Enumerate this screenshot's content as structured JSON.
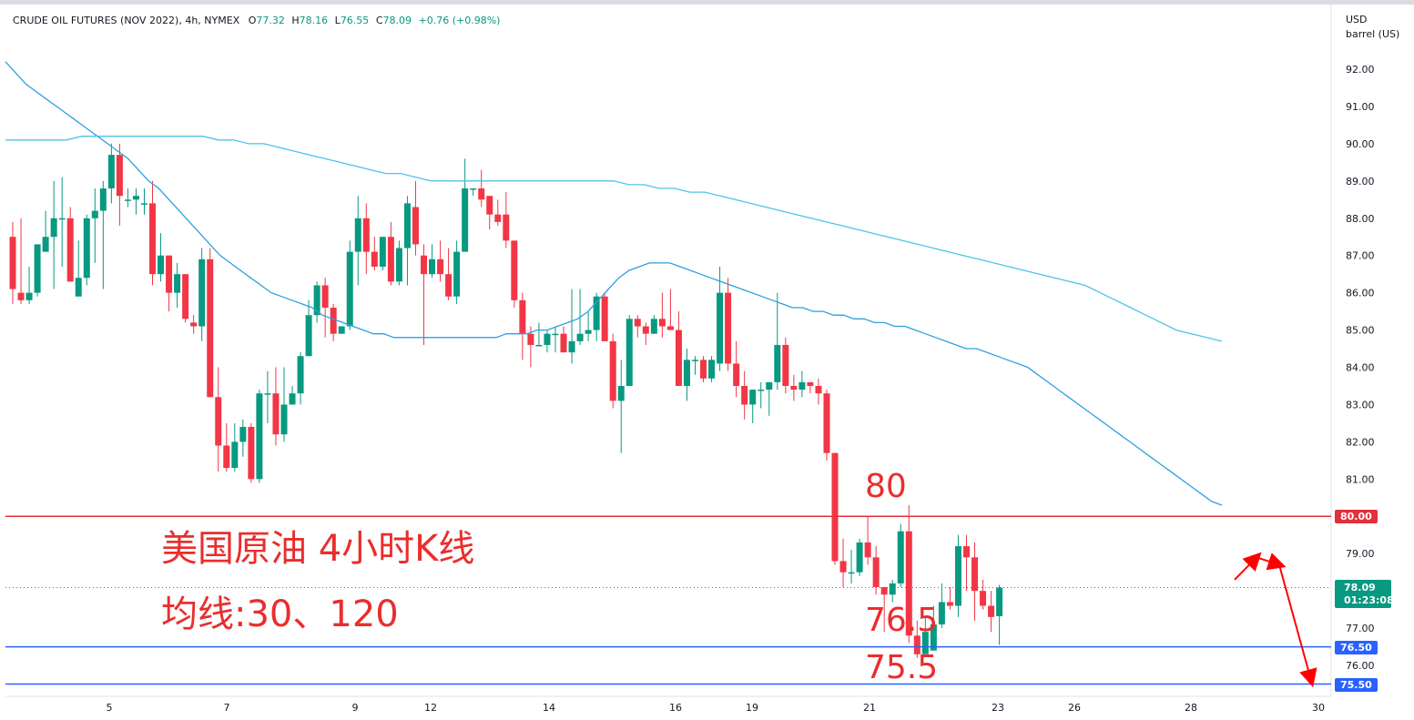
{
  "header": {
    "title": "CRUDE OIL FUTURES (NOV 2022), 4h, NYMEX",
    "open_label": "O",
    "open": "77.32",
    "high_label": "H",
    "high": "78.16",
    "low_label": "L",
    "low": "76.55",
    "close_label": "C",
    "close": "78.09",
    "change": "+0.76 (+0.98%)"
  },
  "axis": {
    "currency": "USD",
    "unit": "barrel (US)"
  },
  "price_tags": {
    "r80": "80.00",
    "r765": "76.50",
    "r755": "75.50",
    "last": "78.09",
    "countdown": "01:23:08"
  },
  "annotations": {
    "title": "美国原油 4小时K线",
    "ma": "均线:30、120",
    "level80": "80",
    "level765": "76.5",
    "level755": "75.5"
  },
  "colors": {
    "up": "#089981",
    "down": "#f23645",
    "ma_fast": "#2f9fe0",
    "ma_slow": "#4fc3e8",
    "resistance": "#e2303c",
    "support": "#2962ff",
    "annotation": "#ea2d2d",
    "grid": "#f0f3fa"
  },
  "chart_data": {
    "type": "candlestick",
    "title": "CRUDE OIL FUTURES (NOV 2022), 4h, NYMEX",
    "ylabel": "USD barrel (US)",
    "ylim": [
      75.0,
      92.7
    ],
    "ticks_y": [
      "76.00",
      "77.00",
      "78.00",
      "79.00",
      "80.00",
      "81.00",
      "82.00",
      "83.00",
      "84.00",
      "85.00",
      "86.00",
      "87.00",
      "88.00",
      "89.00",
      "90.00",
      "91.00",
      "92.00"
    ],
    "ticks_x": [
      "5",
      "7",
      "9",
      "12",
      "14",
      "16",
      "19",
      "21",
      "23",
      "26",
      "28",
      "30"
    ],
    "candles": [
      [
        87.5,
        86.1,
        87.9,
        85.7
      ],
      [
        86.0,
        85.8,
        88.0,
        85.7
      ],
      [
        85.8,
        86.0,
        86.7,
        85.7
      ],
      [
        86.0,
        87.3,
        87.3,
        85.9
      ],
      [
        87.1,
        87.5,
        88.2,
        87.1
      ],
      [
        87.5,
        88.0,
        89.0,
        86.1
      ],
      [
        88.0,
        88.0,
        89.1,
        86.7
      ],
      [
        88.0,
        86.3,
        88.3,
        86.3
      ],
      [
        85.9,
        86.4,
        87.4,
        85.9
      ],
      [
        86.4,
        88.0,
        88.1,
        86.2
      ],
      [
        88.0,
        88.2,
        88.8,
        86.8
      ],
      [
        88.2,
        88.8,
        89.0,
        86.1
      ],
      [
        88.8,
        89.7,
        90.0,
        88.4
      ],
      [
        89.7,
        88.6,
        90.0,
        87.8
      ],
      [
        88.5,
        88.5,
        88.8,
        88.3
      ],
      [
        88.5,
        88.6,
        88.8,
        88.1
      ],
      [
        88.4,
        88.4,
        88.8,
        88.1
      ],
      [
        88.4,
        86.5,
        89.0,
        86.2
      ],
      [
        86.5,
        87.0,
        87.6,
        86.3
      ],
      [
        87.0,
        86.0,
        87.0,
        85.5
      ],
      [
        86.0,
        86.5,
        86.8,
        85.6
      ],
      [
        86.5,
        85.3,
        86.5,
        85.2
      ],
      [
        85.2,
        85.1,
        85.4,
        84.9
      ],
      [
        85.1,
        86.9,
        87.2,
        84.7
      ],
      [
        86.9,
        83.2,
        87.2,
        83.2
      ],
      [
        83.2,
        81.9,
        84.0,
        81.2
      ],
      [
        81.9,
        81.3,
        82.5,
        81.2
      ],
      [
        81.3,
        82.0,
        82.5,
        81.2
      ],
      [
        82.0,
        82.4,
        82.6,
        81.6
      ],
      [
        82.4,
        81.0,
        82.5,
        80.9
      ],
      [
        81.0,
        83.3,
        83.4,
        80.9
      ],
      [
        83.3,
        83.3,
        83.9,
        82.5
      ],
      [
        83.3,
        82.2,
        84.0,
        81.9
      ],
      [
        82.2,
        83.0,
        84.0,
        82.0
      ],
      [
        83.0,
        83.3,
        83.5,
        83.0
      ],
      [
        83.3,
        84.3,
        84.4,
        83.0
      ],
      [
        84.3,
        85.4,
        85.8,
        84.3
      ],
      [
        85.4,
        86.2,
        86.3,
        85.2
      ],
      [
        86.2,
        85.6,
        86.4,
        84.8
      ],
      [
        85.6,
        84.9,
        85.7,
        84.7
      ],
      [
        84.9,
        85.1,
        85.1,
        84.9
      ],
      [
        85.1,
        87.1,
        87.4,
        85.0
      ],
      [
        87.1,
        88.0,
        88.6,
        86.2
      ],
      [
        88.0,
        87.1,
        88.4,
        86.5
      ],
      [
        87.1,
        86.7,
        87.5,
        86.6
      ],
      [
        86.7,
        87.5,
        87.5,
        86.6
      ],
      [
        87.5,
        86.3,
        87.9,
        86.2
      ],
      [
        86.3,
        87.2,
        87.4,
        86.2
      ],
      [
        87.2,
        88.4,
        88.6,
        86.2
      ],
      [
        88.3,
        87.3,
        89.0,
        87.0
      ],
      [
        87.0,
        86.5,
        87.3,
        84.6
      ],
      [
        86.5,
        86.9,
        87.3,
        86.4
      ],
      [
        86.9,
        86.5,
        87.4,
        86.3
      ],
      [
        86.5,
        85.9,
        87.2,
        85.8
      ],
      [
        85.9,
        87.1,
        87.4,
        85.7
      ],
      [
        87.1,
        88.8,
        89.6,
        88.7
      ],
      [
        88.8,
        88.8,
        88.8,
        88.6
      ],
      [
        88.8,
        88.5,
        89.3,
        88.3
      ],
      [
        88.6,
        88.1,
        88.5,
        87.7
      ],
      [
        88.1,
        87.9,
        88.5,
        87.8
      ],
      [
        88.1,
        87.4,
        88.7,
        87.2
      ],
      [
        87.4,
        85.8,
        87.4,
        85.6
      ],
      [
        85.8,
        84.9,
        86.0,
        84.2
      ],
      [
        84.9,
        84.6,
        85.1,
        84.0
      ],
      [
        84.6,
        84.6,
        85.2,
        84.6
      ],
      [
        84.6,
        84.9,
        85.0,
        84.4
      ],
      [
        84.9,
        84.9,
        85.1,
        84.4
      ],
      [
        84.9,
        84.4,
        85.1,
        84.4
      ],
      [
        84.4,
        84.7,
        86.1,
        84.1
      ],
      [
        84.7,
        84.9,
        86.1,
        84.6
      ],
      [
        84.9,
        85.0,
        85.5,
        84.7
      ],
      [
        85.0,
        85.9,
        86.0,
        84.7
      ],
      [
        85.9,
        84.7,
        86.0,
        84.7
      ],
      [
        84.7,
        83.1,
        84.9,
        82.9
      ],
      [
        83.1,
        83.5,
        84.2,
        81.7
      ],
      [
        83.5,
        85.3,
        85.4,
        83.5
      ],
      [
        85.3,
        85.1,
        85.4,
        84.8
      ],
      [
        85.1,
        84.9,
        85.2,
        84.6
      ],
      [
        84.9,
        85.3,
        85.4,
        84.9
      ],
      [
        85.3,
        85.1,
        86.0,
        84.8
      ],
      [
        85.1,
        85.0,
        86.1,
        85.0
      ],
      [
        85.0,
        83.5,
        85.5,
        83.5
      ],
      [
        83.5,
        84.2,
        84.5,
        83.1
      ],
      [
        84.2,
        84.2,
        84.3,
        83.8
      ],
      [
        84.2,
        83.7,
        84.3,
        83.6
      ],
      [
        83.7,
        84.2,
        84.3,
        83.6
      ],
      [
        84.1,
        86.0,
        86.7,
        83.9
      ],
      [
        86.0,
        84.1,
        86.4,
        83.9
      ],
      [
        84.1,
        83.5,
        84.7,
        83.2
      ],
      [
        83.5,
        83.0,
        83.9,
        82.6
      ],
      [
        83.0,
        83.4,
        83.4,
        82.5
      ],
      [
        83.4,
        83.4,
        83.6,
        82.9
      ],
      [
        83.4,
        83.6,
        83.6,
        82.7
      ],
      [
        83.6,
        84.6,
        86.0,
        83.4
      ],
      [
        84.6,
        83.5,
        84.8,
        83.3
      ],
      [
        83.5,
        83.4,
        83.8,
        83.1
      ],
      [
        83.4,
        83.6,
        83.9,
        83.2
      ],
      [
        83.6,
        83.5,
        83.6,
        83.3
      ],
      [
        83.5,
        83.3,
        83.7,
        83.0
      ],
      [
        83.3,
        81.7,
        83.4,
        81.5
      ],
      [
        81.7,
        78.8,
        81.7,
        78.7
      ],
      [
        78.8,
        78.5,
        79.4,
        78.1
      ],
      [
        78.5,
        78.5,
        79.1,
        78.2
      ],
      [
        78.5,
        79.3,
        79.4,
        78.4
      ],
      [
        79.3,
        78.9,
        80.0,
        78.7
      ],
      [
        78.9,
        78.1,
        79.2,
        77.9
      ],
      [
        78.1,
        77.9,
        78.1,
        76.9
      ],
      [
        77.9,
        78.2,
        78.3,
        77.7
      ],
      [
        78.2,
        79.6,
        79.8,
        78.1
      ],
      [
        79.6,
        76.8,
        80.3,
        76.6
      ],
      [
        76.8,
        76.3,
        77.2,
        76.2
      ],
      [
        76.3,
        76.9,
        77.3,
        76.4
      ],
      [
        76.4,
        77.1,
        77.6,
        76.4
      ],
      [
        77.1,
        77.7,
        78.2,
        77.0
      ],
      [
        77.7,
        77.6,
        78.1,
        77.5
      ],
      [
        77.6,
        79.2,
        79.5,
        77.3
      ],
      [
        79.2,
        78.9,
        79.5,
        78.0
      ],
      [
        78.9,
        78.0,
        79.3,
        77.2
      ],
      [
        78.0,
        77.6,
        78.3,
        77.5
      ],
      [
        77.6,
        77.3,
        78.0,
        76.9
      ],
      [
        77.32,
        78.09,
        78.16,
        76.55
      ]
    ],
    "ma30": [
      92.2,
      91.9,
      91.6,
      91.4,
      91.2,
      91.0,
      90.8,
      90.6,
      90.4,
      90.2,
      90.0,
      89.8,
      89.6,
      89.3,
      89.0,
      88.8,
      88.5,
      88.2,
      87.9,
      87.6,
      87.3,
      87.0,
      86.8,
      86.6,
      86.4,
      86.2,
      86.0,
      85.9,
      85.8,
      85.7,
      85.6,
      85.4,
      85.3,
      85.2,
      85.1,
      85.0,
      84.9,
      84.9,
      84.8,
      84.8,
      84.8,
      84.8,
      84.8,
      84.8,
      84.8,
      84.8,
      84.8,
      84.8,
      84.8,
      84.9,
      84.9,
      84.9,
      85.0,
      85.0,
      85.1,
      85.2,
      85.3,
      85.5,
      85.8,
      86.1,
      86.4,
      86.6,
      86.7,
      86.8,
      86.8,
      86.8,
      86.7,
      86.6,
      86.5,
      86.4,
      86.3,
      86.2,
      86.1,
      86.0,
      85.9,
      85.8,
      85.7,
      85.6,
      85.6,
      85.5,
      85.5,
      85.4,
      85.4,
      85.3,
      85.3,
      85.2,
      85.2,
      85.1,
      85.1,
      85.0,
      84.9,
      84.8,
      84.7,
      84.6,
      84.5,
      84.5,
      84.4,
      84.3,
      84.2,
      84.1,
      84.0,
      83.8,
      83.6,
      83.4,
      83.2,
      83.0,
      82.8,
      82.6,
      82.4,
      82.2,
      82.0,
      81.8,
      81.6,
      81.4,
      81.2,
      81.0,
      80.8,
      80.6,
      80.4,
      80.3
    ],
    "ma120": [
      90.1,
      90.1,
      90.1,
      90.1,
      90.1,
      90.2,
      90.2,
      90.2,
      90.2,
      90.2,
      90.2,
      90.2,
      90.2,
      90.2,
      90.1,
      90.1,
      90.0,
      90.0,
      89.9,
      89.8,
      89.7,
      89.6,
      89.5,
      89.4,
      89.3,
      89.2,
      89.2,
      89.1,
      89.0,
      89.0,
      89.0,
      89.0,
      89.0,
      89.0,
      89.0,
      89.0,
      89.0,
      89.0,
      89.0,
      89.0,
      89.0,
      88.9,
      88.9,
      88.8,
      88.8,
      88.7,
      88.7,
      88.6,
      88.5,
      88.4,
      88.3,
      88.2,
      88.1,
      88.0,
      87.9,
      87.8,
      87.7,
      87.6,
      87.5,
      87.4,
      87.3,
      87.2,
      87.1,
      87.0,
      86.9,
      86.8,
      86.7,
      86.6,
      86.5,
      86.4,
      86.3,
      86.2,
      86.0,
      85.8,
      85.6,
      85.4,
      85.2,
      85.0,
      84.9,
      84.8,
      84.7
    ],
    "levels": [
      {
        "price": 80.0,
        "label": "80.00",
        "kind": "resistance"
      },
      {
        "price": 76.5,
        "label": "76.50",
        "kind": "support"
      },
      {
        "price": 75.5,
        "label": "75.50",
        "kind": "support"
      }
    ],
    "forecast_path": [
      78.3,
      78.9,
      78.7,
      75.6
    ]
  }
}
